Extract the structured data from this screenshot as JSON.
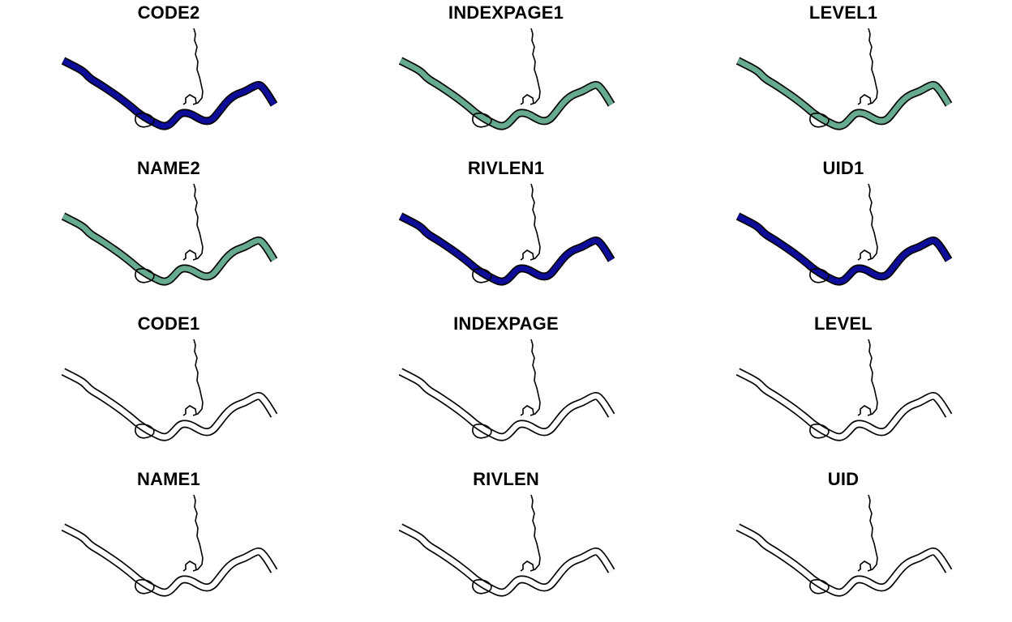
{
  "colors": {
    "dark": "#0d0d9a",
    "light": "#66aa90",
    "none": "#ffffff",
    "outline": "#000000",
    "background": "#ffffff"
  },
  "panels": [
    {
      "title": "CODE2",
      "fill": "dark"
    },
    {
      "title": "INDEXPAGE1",
      "fill": "light"
    },
    {
      "title": "LEVEL1",
      "fill": "light"
    },
    {
      "title": "NAME2",
      "fill": "light"
    },
    {
      "title": "RIVLEN1",
      "fill": "dark"
    },
    {
      "title": "UID1",
      "fill": "dark"
    },
    {
      "title": "CODE1",
      "fill": "none"
    },
    {
      "title": "INDEXPAGE",
      "fill": "none"
    },
    {
      "title": "LEVEL",
      "fill": "none"
    },
    {
      "title": "NAME1",
      "fill": "none"
    },
    {
      "title": "RIVLEN",
      "fill": "none"
    },
    {
      "title": "UID",
      "fill": "none"
    }
  ]
}
